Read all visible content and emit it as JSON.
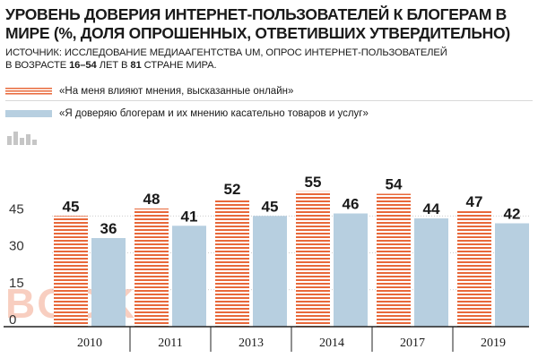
{
  "title": "УРОВЕНЬ ДОВЕРИЯ ИНТЕРНЕТ-ПОЛЬЗОВАТЕЛЕЙ К БЛОГЕРАМ В МИРЕ (%,  ДОЛЯ ОПРОШЕННЫХ, ОТВЕТИВШИХ УТВЕРДИТЕЛЬНО)",
  "source": {
    "line1": "ИСТОЧНИК: ИССЛЕДОВАНИЕ МЕДИААГЕНТСТВА UM, ОПРОС ИНТЕРНЕТ-ПОЛЬЗОВАТЕЛЕЙ",
    "line2_prefix": "В ВОЗРАСТЕ ",
    "line2_age": "16–54",
    "line2_mid": " ЛЕТ В ",
    "line2_count": "81",
    "line2_suffix": " СТРАНЕ МИРА."
  },
  "watermark": "BOOK",
  "colors": {
    "stripe": "#e8683a",
    "blue": "#b7cfe0",
    "axis": "#222222",
    "grid": "#bcbcbc"
  },
  "chart_data": {
    "type": "bar",
    "categories": [
      "2010",
      "2011",
      "2013",
      "2014",
      "2017",
      "2019"
    ],
    "series": [
      {
        "name": "«На меня влияют мнения, высказанные онлайн»",
        "values": [
          45,
          48,
          52,
          55,
          54,
          47
        ],
        "pattern": "horizontal-stripes"
      },
      {
        "name": "«Я доверяю блогерам и их мнению касательно товаров и услуг»",
        "values": [
          36,
          41,
          45,
          46,
          44,
          42
        ]
      }
    ],
    "yticks": [
      0,
      15,
      30,
      45
    ],
    "ylim": [
      0,
      62
    ],
    "data_labels": true
  }
}
